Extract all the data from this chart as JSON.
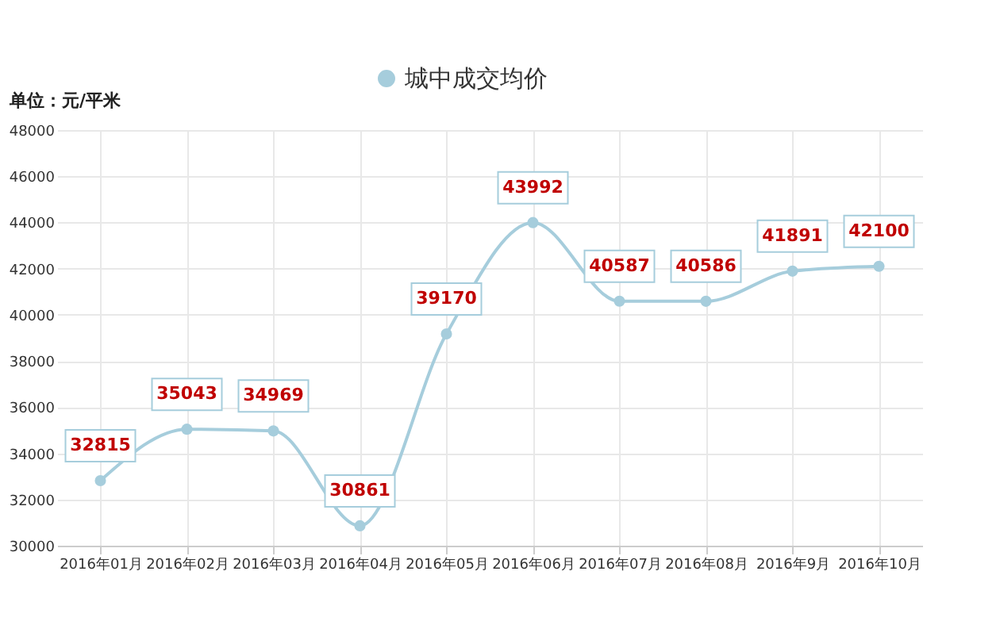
{
  "chart_data": {
    "type": "line",
    "categories": [
      "2016年01月",
      "2016年02月",
      "2016年03月",
      "2016年04月",
      "2016年05月",
      "2016年06月",
      "2016年07月",
      "2016年08月",
      "2016年9月",
      "2016年10月"
    ],
    "series": [
      {
        "name": "城中成交均价",
        "color": "#a6cddc",
        "values": [
          32815,
          35043,
          34969,
          30861,
          39170,
          43992,
          40587,
          40586,
          41891,
          42100
        ]
      }
    ],
    "ylim": [
      30000,
      48000
    ],
    "yticks": [
      30000,
      32000,
      34000,
      36000,
      38000,
      40000,
      42000,
      44000,
      46000,
      48000
    ],
    "grid": true,
    "legend": "top",
    "marker": "circle",
    "line_style": "solid",
    "data_labels": true,
    "annotations": [
      "单位：元/平米"
    ]
  }
}
